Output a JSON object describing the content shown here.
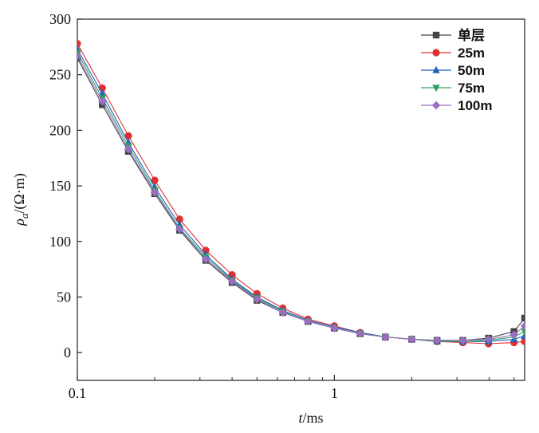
{
  "chart_data": {
    "type": "line",
    "title": "",
    "xlabel": "t/ms",
    "ylabel": "ρa/(Ω·m)",
    "x_scale": "log",
    "xlim": [
      0.1,
      5.5
    ],
    "ylim": [
      -25,
      300
    ],
    "x_ticks": [
      "0.1",
      "1"
    ],
    "y_ticks": [
      "0",
      "50",
      "100",
      "150",
      "200",
      "250",
      "300"
    ],
    "legend_position": "top-right",
    "grid": false,
    "x": [
      0.1,
      0.125,
      0.158,
      0.2,
      0.25,
      0.316,
      0.4,
      0.5,
      0.63,
      0.79,
      1.0,
      1.26,
      1.58,
      2.0,
      2.51,
      3.16,
      3.98,
      5.0,
      5.5
    ],
    "series": [
      {
        "name": "单层",
        "color": "#444444",
        "marker": "square",
        "values": [
          265,
          223,
          181,
          143,
          110,
          83,
          63,
          47,
          36,
          28,
          22,
          17,
          14,
          12,
          11,
          11,
          13,
          19,
          31
        ]
      },
      {
        "name": "25m",
        "color": "#e03030",
        "marker": "circle",
        "values": [
          278,
          238,
          195,
          155,
          120,
          92,
          70,
          53,
          40,
          30,
          24,
          18,
          14,
          12,
          10,
          9,
          8,
          9,
          10
        ]
      },
      {
        "name": "50m",
        "color": "#2060c0",
        "marker": "triangle-up",
        "values": [
          273,
          233,
          189,
          149,
          115,
          88,
          66,
          50,
          38,
          29,
          23,
          18,
          14,
          12,
          10,
          10,
          10,
          12,
          15
        ]
      },
      {
        "name": "75m",
        "color": "#2ca060",
        "marker": "triangle-down",
        "values": [
          270,
          229,
          186,
          146,
          112,
          86,
          65,
          49,
          37,
          28,
          22,
          17,
          14,
          12,
          10,
          10,
          11,
          14,
          19
        ]
      },
      {
        "name": "100m",
        "color": "#9b6fc0",
        "marker": "diamond",
        "values": [
          267,
          226,
          183,
          144,
          111,
          84,
          64,
          48,
          36,
          28,
          22,
          17,
          14,
          12,
          11,
          11,
          12,
          16,
          24
        ]
      }
    ]
  }
}
